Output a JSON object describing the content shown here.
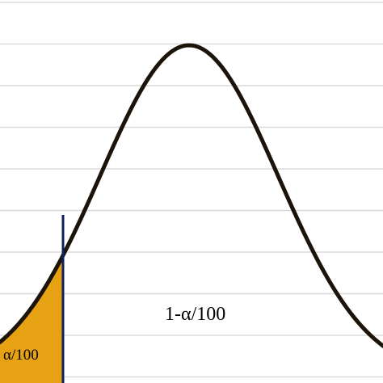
{
  "diagram": {
    "type": "normal-distribution-tail",
    "labels": {
      "tail": "α/100",
      "body": "1-α/100"
    },
    "colors": {
      "background": "#ffffff",
      "gridline": "#d9d9d9",
      "curve": "#1c1408",
      "tail_fill": "#e6a212",
      "cutoff_line": "#0d1f5c"
    }
  }
}
